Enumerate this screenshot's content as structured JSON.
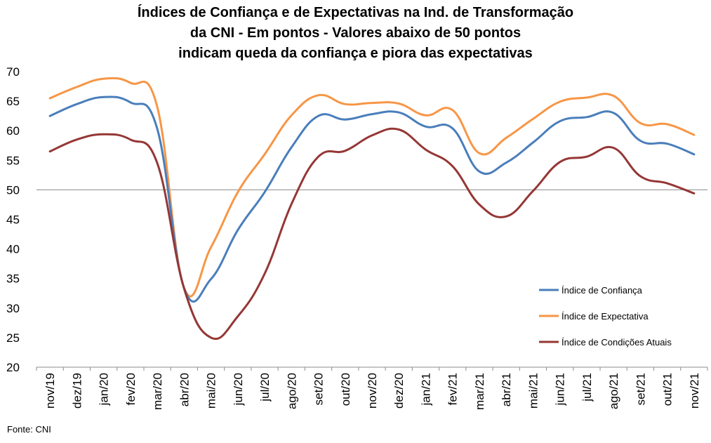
{
  "title_lines": [
    "Índices de Confiança e de Expectativas na Ind. de Transformação",
    "da CNI - Em pontos - Valores abaixo de 50 pontos",
    "indicam queda da confiança e piora das expectativas"
  ],
  "source": "Fonte: CNI",
  "chart_data": {
    "type": "line",
    "title": "Índices de Confiança e de Expectativas na Ind. de Transformação da CNI - Em pontos - Valores abaixo de 50 pontos indicam queda da confiança e piora das expectativas",
    "categories": [
      "nov/19",
      "dez/19",
      "jan/20",
      "fev/20",
      "mar/20",
      "abr/20",
      "mai/20",
      "jun/20",
      "jul/20",
      "ago/20",
      "set/20",
      "out/20",
      "nov/20",
      "dez/20",
      "jan/21",
      "fev/21",
      "mar/21",
      "abr/21",
      "mai/21",
      "jun/21",
      "jul/21",
      "ago/21",
      "set/21",
      "out/21",
      "nov/21"
    ],
    "series": [
      {
        "name": "Índice de Confiança",
        "color": "#4a7ebb",
        "values": [
          62.5,
          64.5,
          65.7,
          64.8,
          60.3,
          33.4,
          34.9,
          43.2,
          49.6,
          57.2,
          62.5,
          61.9,
          62.8,
          63.1,
          60.7,
          60.4,
          53.1,
          54.6,
          58.0,
          61.6,
          62.3,
          63.0,
          58.3,
          57.8,
          56.0
        ]
      },
      {
        "name": "Índice de Expectativa",
        "color": "#f79646",
        "values": [
          65.5,
          67.4,
          68.8,
          68.1,
          64.0,
          33.4,
          40.3,
          49.6,
          56.0,
          62.6,
          66.0,
          64.5,
          64.7,
          64.6,
          62.6,
          63.5,
          56.2,
          58.8,
          62.0,
          64.9,
          65.6,
          65.9,
          61.3,
          61.1,
          59.3
        ]
      },
      {
        "name": "Índice de Condições Atuais",
        "color": "#953735",
        "values": [
          56.5,
          58.5,
          59.4,
          58.5,
          54.5,
          33.3,
          25.0,
          28.6,
          35.8,
          47.6,
          55.6,
          56.6,
          59.2,
          60.2,
          56.8,
          54.0,
          47.5,
          45.5,
          49.8,
          54.7,
          55.6,
          57.1,
          52.3,
          51.1,
          49.4
        ]
      }
    ],
    "ylim": [
      20,
      70
    ],
    "yticks": [
      20,
      25,
      30,
      35,
      40,
      45,
      50,
      55,
      60,
      65,
      70
    ],
    "reference_line": 50,
    "grid": false,
    "legend_position": "right"
  }
}
